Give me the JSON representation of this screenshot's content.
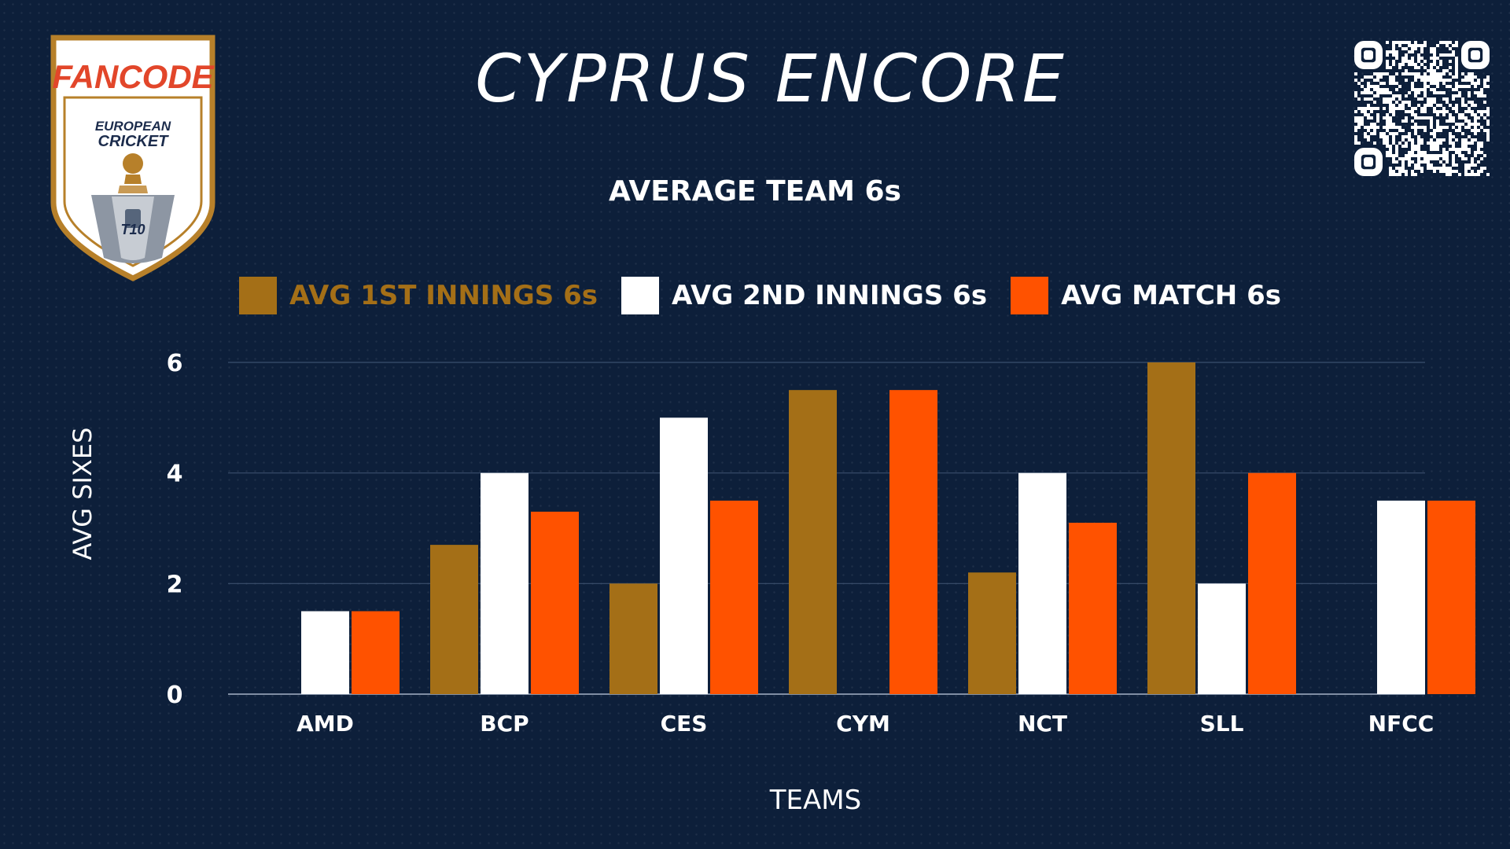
{
  "brand": {
    "logo_text": "FANCODE",
    "badge_line1": "EUROPEAN",
    "badge_line2": "CRICKET",
    "badge_format": "T10"
  },
  "page": {
    "title": "CYPRUS ENCORE"
  },
  "colors": {
    "background": "#0d1f3a",
    "first_innings": "#a46f17",
    "second_innings": "#ffffff",
    "match": "#ff5200",
    "gridline": "#3b4f6d"
  },
  "chart_data": {
    "type": "bar",
    "title": "AVERAGE TEAM 6s",
    "xlabel": "TEAMS",
    "ylabel": "AVG SIXES",
    "ylim": [
      0,
      6
    ],
    "yticks": [
      0,
      2,
      4,
      6
    ],
    "grid": true,
    "legend_position": "top",
    "categories": [
      "AMD",
      "BCP",
      "CES",
      "CYM",
      "NCT",
      "SLL",
      "NFCC"
    ],
    "series": [
      {
        "name": "AVG 1ST INNINGS 6s",
        "color": "#a46f17",
        "values": [
          0,
          2.7,
          2,
          5.5,
          2.2,
          6,
          0
        ]
      },
      {
        "name": "AVG 2ND INNINGS 6s",
        "color": "#ffffff",
        "values": [
          1.5,
          4,
          5,
          0,
          4,
          2,
          3.5
        ]
      },
      {
        "name": "AVG MATCH 6s",
        "color": "#ff5200",
        "values": [
          1.5,
          3.3,
          3.5,
          5.5,
          3.1,
          4,
          3.5
        ]
      }
    ]
  }
}
